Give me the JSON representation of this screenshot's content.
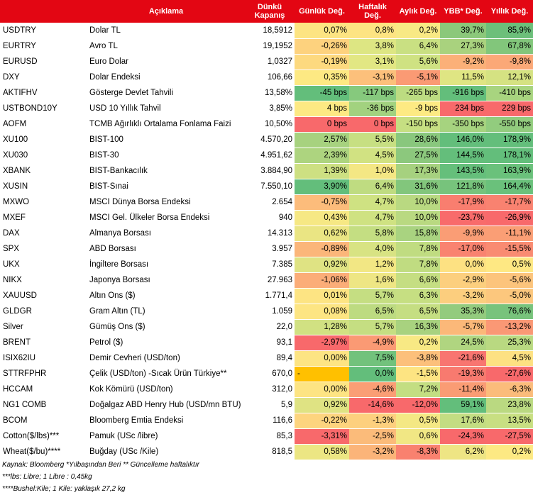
{
  "header": {
    "code": "",
    "desc": "Açıklama",
    "close": "Dünkü Kapanış",
    "daily": "Günlük Değ.",
    "weekly": "Haftalık Değ.",
    "monthly": "Aylık Değ.",
    "ytd": "YBB* Değ.",
    "yearly": "Yıllık Değ."
  },
  "rows": [
    {
      "code": "USDTRY",
      "desc": "Dolar TL",
      "close": "18,5912",
      "d": "0,07%",
      "w": "0,8%",
      "m": "0,2%",
      "y": "39,7%",
      "a": "85,9%",
      "c": [
        "#fde482",
        "#fde482",
        "#f8e984",
        "#8bc87a",
        "#6cbf7a"
      ]
    },
    {
      "code": "EURTRY",
      "desc": "Avro TL",
      "close": "19,1952",
      "d": "-0,26%",
      "w": "3,8%",
      "m": "6,4%",
      "y": "27,3%",
      "a": "67,8%",
      "c": [
        "#fdd27e",
        "#dde683",
        "#c9e082",
        "#a9d27e",
        "#82c67b"
      ]
    },
    {
      "code": "EURUSD",
      "desc": "Euro Dolar",
      "close": "1,0327",
      "d": "-0,19%",
      "w": "3,1%",
      "m": "5,6%",
      "y": "-9,2%",
      "a": "-9,8%",
      "c": [
        "#fdd97f",
        "#e2e783",
        "#cfe282",
        "#fbb078",
        "#fba877"
      ]
    },
    {
      "code": "DXY",
      "desc": "Dolar Endeksi",
      "close": "106,66",
      "d": "0,35%",
      "w": "-3,1%",
      "m": "-5,1%",
      "y": "11,5%",
      "a": "12,1%",
      "c": [
        "#fde983",
        "#fcc07b",
        "#fa9a74",
        "#dfe583",
        "#d5e282"
      ]
    },
    {
      "code": "AKTIFHV",
      "desc": "Gösterge Devlet Tahvili",
      "close": "13,58%",
      "d": "-45 bps",
      "w": "-117 bps",
      "m": "-265 bps",
      "y": "-916 bps",
      "a": "-410 bps",
      "c": [
        "#63be7b",
        "#86c97d",
        "#bcdc81",
        "#63be7b",
        "#a8d47f"
      ]
    },
    {
      "code": "USTBOND10Y",
      "desc": "USD 10 Yıllık Tahvil",
      "close": "3,85%",
      "d": "4 bps",
      "w": "-36 bps",
      "m": "-9 bps",
      "y": "234 bps",
      "a": "229 bps",
      "c": [
        "#fde983",
        "#a2d27f",
        "#fdea83",
        "#f8696b",
        "#f8696b"
      ]
    },
    {
      "code": "AOFM",
      "desc": "TCMB Ağırlıklı Ortalama Fonlama Faizi",
      "close": "10,50%",
      "d": "0 bps",
      "w": "0 bps",
      "m": "-150 bps",
      "y": "-350 bps",
      "a": "-550 bps",
      "c": [
        "#f8696b",
        "#f8696b",
        "#c6df82",
        "#a6d37f",
        "#92cc7e"
      ]
    },
    {
      "code": "XU100",
      "desc": "BIST-100",
      "close": "4.570,20",
      "d": "2,57%",
      "w": "5,5%",
      "m": "28,6%",
      "y": "146,0%",
      "a": "178,9%",
      "c": [
        "#a7d27f",
        "#c7df82",
        "#89c77d",
        "#63be7b",
        "#63be7b"
      ]
    },
    {
      "code": "XU030",
      "desc": "BIST-30",
      "close": "4.951,62",
      "d": "2,39%",
      "w": "4,5%",
      "m": "27,5%",
      "y": "144,5%",
      "a": "178,1%",
      "c": [
        "#add47f",
        "#d1e282",
        "#8cc87d",
        "#64be7b",
        "#63be7b"
      ]
    },
    {
      "code": "XBANK",
      "desc": "BIST-Bankacılık",
      "close": "3.884,90",
      "d": "1,39%",
      "w": "1,0%",
      "m": "17,3%",
      "y": "143,5%",
      "a": "163,9%",
      "c": [
        "#cde082",
        "#f4e784",
        "#a6d17f",
        "#65bf7b",
        "#6ac17b"
      ]
    },
    {
      "code": "XUSIN",
      "desc": "BIST-Sınai",
      "close": "7.550,10",
      "d": "3,90%",
      "w": "6,4%",
      "m": "31,6%",
      "y": "121,8%",
      "a": "164,4%",
      "c": [
        "#63be7b",
        "#bfdc81",
        "#82c67c",
        "#77c37c",
        "#6ac17b"
      ]
    },
    {
      "code": "MXWO",
      "desc": "MSCI Dünya Borsa Endeksi",
      "close": "2.654",
      "d": "-0,75%",
      "w": "4,7%",
      "m": "10,0%",
      "y": "-17,9%",
      "a": "-17,7%",
      "c": [
        "#fcbc7b",
        "#cfe282",
        "#b9d981",
        "#f97e6f",
        "#f98270"
      ]
    },
    {
      "code": "MXEF",
      "desc": "MSCI Gel. Ülkeler Borsa Endeksi",
      "close": "940",
      "d": "0,43%",
      "w": "4,7%",
      "m": "10,0%",
      "y": "-23,7%",
      "a": "-26,9%",
      "c": [
        "#f6e884",
        "#cfe282",
        "#b9d981",
        "#f86b6b",
        "#f8696b"
      ]
    },
    {
      "code": "DAX",
      "desc": "Almanya Borsası",
      "close": "14.313",
      "d": "0,62%",
      "w": "5,8%",
      "m": "15,8%",
      "y": "-9,9%",
      "a": "-11,1%",
      "c": [
        "#eae583",
        "#c4de82",
        "#a9d380",
        "#fa9d75",
        "#fa9e75"
      ]
    },
    {
      "code": "SPX",
      "desc": "ABD Borsası",
      "close": "3.957",
      "d": "-0,89%",
      "w": "4,0%",
      "m": "7,8%",
      "y": "-17,0%",
      "a": "-15,5%",
      "c": [
        "#fbb67a",
        "#d8e383",
        "#c0dc81",
        "#f98370",
        "#f98b72"
      ]
    },
    {
      "code": "UKX",
      "desc": "İngiltere Borsası",
      "close": "7.385",
      "d": "0,92%",
      "w": "1,2%",
      "m": "7,8%",
      "y": "0,0%",
      "a": "0,5%",
      "c": [
        "#dfe383",
        "#f2e784",
        "#c0dc81",
        "#fde182",
        "#fee883"
      ]
    },
    {
      "code": "NIKX",
      "desc": "Japonya Borsası",
      "close": "27.963",
      "d": "-1,06%",
      "w": "1,6%",
      "m": "6,6%",
      "y": "-2,9%",
      "a": "-5,6%",
      "c": [
        "#fbad78",
        "#eee684",
        "#c5de82",
        "#fccf7e",
        "#fcc47c"
      ]
    },
    {
      "code": "XAUUSD",
      "desc": "Altın Ons ($)",
      "close": "1.771,4",
      "d": "0,01%",
      "w": "5,7%",
      "m": "6,3%",
      "y": "-3,2%",
      "a": "-5,0%",
      "c": [
        "#fde483",
        "#c5de82",
        "#c6df82",
        "#fcce7e",
        "#fcc77d"
      ]
    },
    {
      "code": "GLDGR",
      "desc": "Gram Altın (TL)",
      "close": "1.059",
      "d": "0,08%",
      "w": "6,5%",
      "m": "6,5%",
      "y": "35,3%",
      "a": "76,6%",
      "c": [
        "#fde583",
        "#bddb81",
        "#c5de82",
        "#93cb7e",
        "#78c37c"
      ]
    },
    {
      "code": "Silver",
      "desc": "Gümüş Ons ($)",
      "close": "22,0",
      "d": "1,28%",
      "w": "5,7%",
      "m": "16,3%",
      "y": "-5,7%",
      "a": "-13,2%",
      "c": [
        "#d1e182",
        "#c5de82",
        "#a8d27f",
        "#fbb879",
        "#fa9875"
      ]
    },
    {
      "code": "BRENT",
      "desc": "Petrol ($)",
      "close": "93,1",
      "d": "-2,97%",
      "w": "-4,9%",
      "m": "0,2%",
      "y": "24,5%",
      "a": "25,3%",
      "c": [
        "#f8696b",
        "#fa9a74",
        "#f8e984",
        "#b0d580",
        "#b9d981"
      ]
    },
    {
      "code": "ISIX62IU",
      "desc": "Demir Cevheri (USD/ton)",
      "close": "89,4",
      "d": "0,00%",
      "w": "7,5%",
      "m": "-3,8%",
      "y": "-21,6%",
      "a": "4,5%",
      "c": [
        "#fde483",
        "#72c27c",
        "#fcc07b",
        "#f87570",
        "#fde182"
      ]
    },
    {
      "code": "STTRFPHR",
      "desc": "Çelik (USD/ton) -Sıcak Ürün Türkiye**",
      "close": "670,0",
      "d": "-",
      "w": "0,0%",
      "m": "-1,5%",
      "y": "-19,3%",
      "a": "-27,6%",
      "c": [
        "#ffc000",
        "#63be7b",
        "#fde482",
        "#f87a6f",
        "#f8696b"
      ]
    },
    {
      "code": "HCCAM",
      "desc": "Kok Kömürü (USD/ton)",
      "close": "312,0",
      "d": "0,00%",
      "w": "-4,6%",
      "m": "7,2%",
      "y": "-11,4%",
      "a": "-6,3%",
      "c": [
        "#fde483",
        "#fa9e75",
        "#c3de82",
        "#fa9c74",
        "#fbbc7b"
      ]
    },
    {
      "code": "NG1 COMB",
      "desc": "Doğalgaz ABD Henry Hub (USD/mn BTU)",
      "close": "5,9",
      "d": "0,92%",
      "w": "-14,6%",
      "m": "-12,0%",
      "y": "59,1%",
      "a": "23,8%",
      "c": [
        "#dfe383",
        "#f8696b",
        "#f8696b",
        "#63be7b",
        "#bad981"
      ]
    },
    {
      "code": "BCOM",
      "desc": "Bloomberg Emtia Endeksi",
      "close": "116,6",
      "d": "-0,22%",
      "w": "-1,3%",
      "m": "0,5%",
      "y": "17,6%",
      "a": "13,5%",
      "c": [
        "#fdd47e",
        "#fdd07e",
        "#f4e884",
        "#c3dd82",
        "#c8df82"
      ]
    },
    {
      "code": "Cotton($/lbs)***",
      "desc": "Pamuk (USc /libre)",
      "close": "85,3",
      "d": "-3,31%",
      "w": "-2,5%",
      "m": "0,6%",
      "y": "-24,3%",
      "a": "-27,5%",
      "c": [
        "#f8696b",
        "#fbbb7a",
        "#f1e784",
        "#f8696b",
        "#f8696b"
      ]
    },
    {
      "code": "Wheat($/bu)****",
      "desc": "Buğday (USc /Kile)",
      "close": "818,5",
      "d": "0,58%",
      "w": "-3,2%",
      "m": "-8,3%",
      "y": "6,2%",
      "a": "0,2%",
      "c": [
        "#ece683",
        "#fbb479",
        "#f9816f",
        "#eee584",
        "#fde983"
      ]
    }
  ],
  "footnotes": {
    "line1": "Kaynak: Bloomberg *Yılbaşından Beri  ** Güncelleme haftalıktır",
    "line2": "***lbs: Libre; 1 Libre : 0,45kg",
    "line3": "****Bushel:Kile; 1 Kile: yaklaşık 27,2 kg"
  },
  "colors": {
    "header_bg": "#e30613",
    "header_text": "#ffffff"
  }
}
